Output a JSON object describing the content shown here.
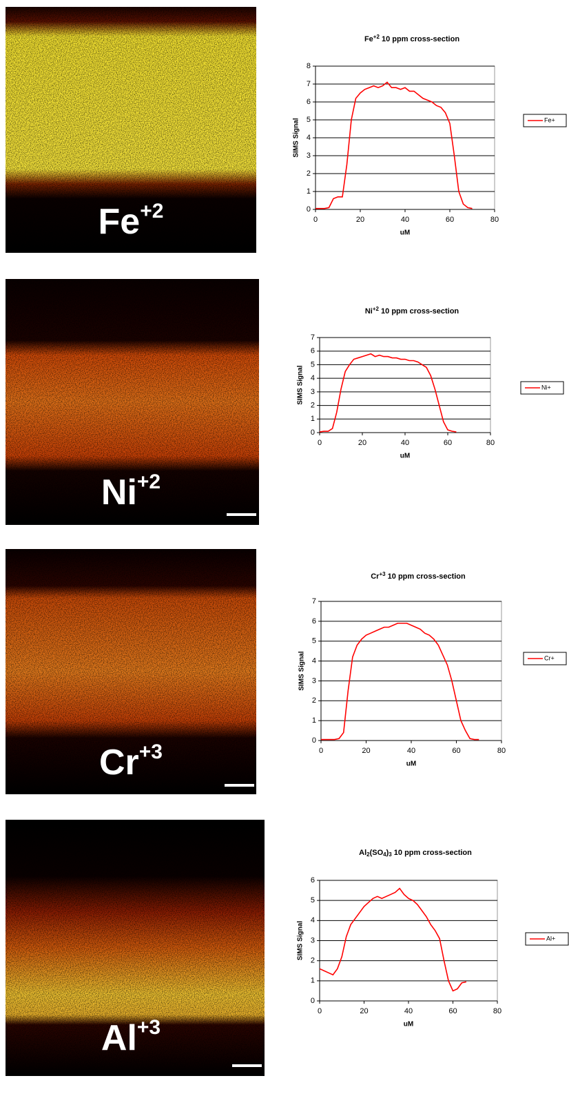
{
  "images": [
    {
      "label": [
        {
          "text": "Fe"
        },
        {
          "text": "+2",
          "sup": true
        }
      ]
    },
    {
      "label": [
        {
          "text": "Ni"
        },
        {
          "text": "+2",
          "sup": true
        }
      ]
    },
    {
      "label": [
        {
          "text": "Cr"
        },
        {
          "text": "+3",
          "sup": true
        }
      ]
    },
    {
      "label": [
        {
          "text": "Al"
        },
        {
          "text": "+3",
          "sup": true
        }
      ]
    }
  ],
  "chart_data": [
    {
      "type": "line",
      "title": [
        {
          "text": "Fe"
        },
        {
          "text": "+2",
          "sup": true
        },
        {
          "text": " 10 ppm cross-section"
        }
      ],
      "x_label": "uM",
      "y_label": "SIMS Signal",
      "x": [
        0,
        2,
        4,
        6,
        8,
        10,
        12,
        14,
        16,
        18,
        20,
        22,
        24,
        26,
        28,
        30,
        32,
        34,
        36,
        38,
        40,
        42,
        44,
        46,
        48,
        50,
        52,
        54,
        56,
        58,
        60,
        62,
        64,
        66,
        68,
        70
      ],
      "series": [
        {
          "name": "Fe+",
          "color": "#ff0000",
          "values": [
            0.05,
            0.05,
            0.05,
            0.1,
            0.6,
            0.7,
            0.7,
            2.5,
            5.0,
            6.2,
            6.5,
            6.7,
            6.8,
            6.9,
            6.8,
            6.9,
            7.1,
            6.8,
            6.8,
            6.7,
            6.8,
            6.6,
            6.6,
            6.4,
            6.2,
            6.1,
            6.0,
            5.8,
            5.7,
            5.4,
            4.8,
            3.0,
            1.0,
            0.3,
            0.1,
            0.05
          ]
        }
      ],
      "xlim": [
        0,
        80
      ],
      "xticks": [
        0,
        20,
        40,
        60,
        80
      ],
      "ylim": [
        0,
        8
      ],
      "yticks": [
        0,
        1,
        2,
        3,
        4,
        5,
        6,
        7,
        8
      ],
      "grid": true,
      "legend": "right"
    },
    {
      "type": "line",
      "title": [
        {
          "text": "Ni"
        },
        {
          "text": "+2",
          "sup": true
        },
        {
          "text": " 10 ppm cross-section"
        }
      ],
      "x_label": "uM",
      "y_label": "SIMS Signal",
      "x": [
        0,
        2,
        4,
        6,
        8,
        10,
        12,
        14,
        16,
        18,
        20,
        22,
        24,
        26,
        28,
        30,
        32,
        34,
        36,
        38,
        40,
        42,
        44,
        46,
        48,
        50,
        52,
        54,
        56,
        58,
        60,
        62,
        64
      ],
      "series": [
        {
          "name": "Ni+",
          "color": "#ff0000",
          "values": [
            0.05,
            0.1,
            0.1,
            0.3,
            1.5,
            3.2,
            4.5,
            5.0,
            5.4,
            5.5,
            5.6,
            5.7,
            5.8,
            5.6,
            5.7,
            5.6,
            5.6,
            5.5,
            5.5,
            5.4,
            5.4,
            5.3,
            5.3,
            5.2,
            5.0,
            4.8,
            4.2,
            3.2,
            2.0,
            0.8,
            0.2,
            0.1,
            0.05
          ]
        }
      ],
      "xlim": [
        0,
        80
      ],
      "xticks": [
        0,
        20,
        40,
        60,
        80
      ],
      "ylim": [
        0,
        7
      ],
      "yticks": [
        0,
        1,
        2,
        3,
        4,
        5,
        6,
        7
      ],
      "grid": true,
      "legend": "right"
    },
    {
      "type": "line",
      "title": [
        {
          "text": "Cr"
        },
        {
          "text": "+3",
          "sup": true
        },
        {
          "text": " 10 ppm cross-section"
        }
      ],
      "x_label": "uM",
      "y_label": "SIMS Signal",
      "x": [
        0,
        2,
        4,
        6,
        8,
        10,
        12,
        14,
        16,
        18,
        20,
        22,
        24,
        26,
        28,
        30,
        32,
        34,
        36,
        38,
        40,
        42,
        44,
        46,
        48,
        50,
        52,
        54,
        56,
        58,
        60,
        62,
        64,
        66,
        68,
        70
      ],
      "series": [
        {
          "name": "Cr+",
          "color": "#ff0000",
          "values": [
            0.05,
            0.05,
            0.05,
            0.05,
            0.1,
            0.4,
            2.5,
            4.2,
            4.8,
            5.1,
            5.3,
            5.4,
            5.5,
            5.6,
            5.7,
            5.7,
            5.8,
            5.9,
            5.9,
            5.9,
            5.8,
            5.7,
            5.6,
            5.4,
            5.3,
            5.1,
            4.8,
            4.3,
            3.8,
            3.0,
            2.0,
            1.0,
            0.5,
            0.1,
            0.05,
            0.05
          ]
        }
      ],
      "xlim": [
        0,
        80
      ],
      "xticks": [
        0,
        20,
        40,
        60,
        80
      ],
      "ylim": [
        0,
        7
      ],
      "yticks": [
        0,
        1,
        2,
        3,
        4,
        5,
        6,
        7
      ],
      "grid": true,
      "legend": "right"
    },
    {
      "type": "line",
      "title": [
        {
          "text": "Al"
        },
        {
          "text": "2",
          "sub": true
        },
        {
          "text": "(SO"
        },
        {
          "text": "4",
          "sub": true
        },
        {
          "text": ")"
        },
        {
          "text": "3",
          "sub": true
        },
        {
          "text": " 10 ppm cross-section"
        }
      ],
      "x_label": "uM",
      "y_label": "SIMS Signal",
      "x": [
        0,
        2,
        4,
        6,
        8,
        10,
        12,
        14,
        16,
        18,
        20,
        22,
        24,
        26,
        28,
        30,
        32,
        34,
        36,
        38,
        40,
        42,
        44,
        46,
        48,
        50,
        52,
        54,
        56,
        58,
        60,
        62,
        64,
        66
      ],
      "series": [
        {
          "name": "Al+",
          "color": "#ff0000",
          "values": [
            1.6,
            1.5,
            1.4,
            1.3,
            1.6,
            2.2,
            3.2,
            3.8,
            4.1,
            4.4,
            4.7,
            4.9,
            5.1,
            5.2,
            5.1,
            5.2,
            5.3,
            5.4,
            5.6,
            5.3,
            5.1,
            5.0,
            4.8,
            4.5,
            4.2,
            3.8,
            3.5,
            3.1,
            2.0,
            1.0,
            0.5,
            0.6,
            0.9,
            0.95
          ]
        }
      ],
      "xlim": [
        0,
        80
      ],
      "xticks": [
        0,
        20,
        40,
        60,
        80
      ],
      "ylim": [
        0,
        6
      ],
      "yticks": [
        0,
        1,
        2,
        3,
        4,
        5,
        6
      ],
      "grid": true,
      "legend": "right"
    }
  ]
}
